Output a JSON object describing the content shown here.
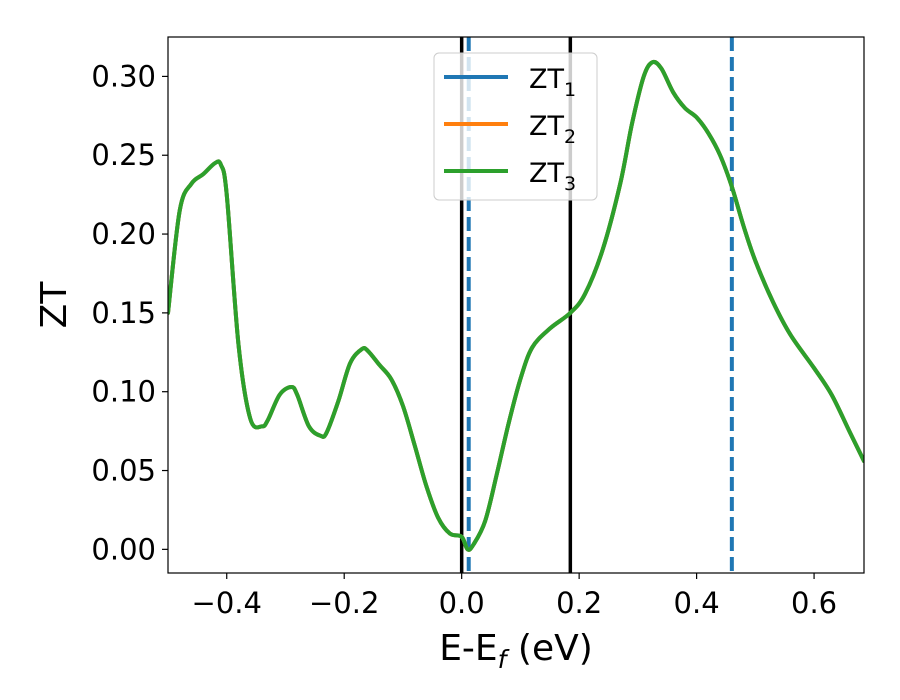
{
  "chart_data": {
    "type": "line",
    "xlabel": "E-E_f (eV)",
    "xlabel_main": "E-E",
    "xlabel_sub": "f",
    "xlabel_tail": " (eV)",
    "ylabel": "ZT",
    "xlim": [
      -0.5,
      0.685
    ],
    "ylim": [
      -0.015,
      0.325
    ],
    "x_ticks": [
      -0.4,
      -0.2,
      0.0,
      0.2,
      0.4,
      0.6
    ],
    "x_tick_labels": [
      "−0.4",
      "−0.2",
      "0.0",
      "0.2",
      "0.4",
      "0.6"
    ],
    "y_ticks": [
      0.0,
      0.05,
      0.1,
      0.15,
      0.2,
      0.25,
      0.3
    ],
    "y_tick_labels": [
      "0.00",
      "0.05",
      "0.10",
      "0.15",
      "0.20",
      "0.25",
      "0.30"
    ],
    "grid": false,
    "legend_position": "top-center",
    "vertical_lines": [
      {
        "x": 0.0,
        "style": "solid",
        "color": "#000000"
      },
      {
        "x": 0.185,
        "style": "solid",
        "color": "#000000"
      },
      {
        "x": 0.012,
        "style": "dashed",
        "color": "#1f77b4"
      },
      {
        "x": 0.46,
        "style": "dashed",
        "color": "#1f77b4"
      }
    ],
    "x": [
      -0.5,
      -0.48,
      -0.46,
      -0.44,
      -0.42,
      -0.41,
      -0.4,
      -0.38,
      -0.36,
      -0.34,
      -0.33,
      -0.31,
      -0.29,
      -0.28,
      -0.26,
      -0.24,
      -0.23,
      -0.21,
      -0.19,
      -0.17,
      -0.16,
      -0.14,
      -0.12,
      -0.1,
      -0.08,
      -0.06,
      -0.04,
      -0.02,
      0.0,
      0.01,
      0.02,
      0.04,
      0.06,
      0.08,
      0.1,
      0.12,
      0.15,
      0.185,
      0.21,
      0.24,
      0.27,
      0.29,
      0.31,
      0.325,
      0.34,
      0.36,
      0.38,
      0.4,
      0.42,
      0.44,
      0.46,
      0.48,
      0.5,
      0.53,
      0.56,
      0.6,
      0.63,
      0.66,
      0.685
    ],
    "series": [
      {
        "name": "ZT",
        "name_sub": "1",
        "color": "#1f77b4",
        "values": [
          0.15,
          0.215,
          0.232,
          0.238,
          0.245,
          0.244,
          0.225,
          0.13,
          0.083,
          0.078,
          0.082,
          0.098,
          0.103,
          0.098,
          0.078,
          0.072,
          0.074,
          0.094,
          0.118,
          0.127,
          0.126,
          0.117,
          0.108,
          0.091,
          0.066,
          0.04,
          0.02,
          0.01,
          0.008,
          0.0,
          0.003,
          0.018,
          0.048,
          0.08,
          0.108,
          0.128,
          0.14,
          0.15,
          0.162,
          0.19,
          0.232,
          0.27,
          0.3,
          0.309,
          0.305,
          0.29,
          0.28,
          0.274,
          0.264,
          0.25,
          0.23,
          0.205,
          0.183,
          0.157,
          0.136,
          0.115,
          0.098,
          0.075,
          0.056
        ]
      },
      {
        "name": "ZT",
        "name_sub": "2",
        "color": "#ff7f0e",
        "values": [
          0.15,
          0.215,
          0.232,
          0.238,
          0.245,
          0.244,
          0.225,
          0.13,
          0.083,
          0.078,
          0.082,
          0.098,
          0.103,
          0.098,
          0.078,
          0.072,
          0.074,
          0.094,
          0.118,
          0.127,
          0.126,
          0.117,
          0.108,
          0.091,
          0.066,
          0.04,
          0.02,
          0.01,
          0.008,
          0.0,
          0.003,
          0.018,
          0.048,
          0.08,
          0.108,
          0.128,
          0.14,
          0.15,
          0.162,
          0.19,
          0.232,
          0.27,
          0.3,
          0.309,
          0.305,
          0.29,
          0.28,
          0.274,
          0.264,
          0.25,
          0.23,
          0.205,
          0.183,
          0.157,
          0.136,
          0.115,
          0.098,
          0.075,
          0.056
        ]
      },
      {
        "name": "ZT",
        "name_sub": "3",
        "color": "#2ca02c",
        "values": [
          0.15,
          0.215,
          0.232,
          0.238,
          0.245,
          0.244,
          0.225,
          0.13,
          0.083,
          0.078,
          0.082,
          0.098,
          0.103,
          0.098,
          0.078,
          0.072,
          0.074,
          0.094,
          0.118,
          0.127,
          0.126,
          0.117,
          0.108,
          0.091,
          0.066,
          0.04,
          0.02,
          0.01,
          0.008,
          0.0,
          0.003,
          0.018,
          0.048,
          0.08,
          0.108,
          0.128,
          0.14,
          0.15,
          0.162,
          0.19,
          0.232,
          0.27,
          0.3,
          0.309,
          0.305,
          0.29,
          0.28,
          0.274,
          0.264,
          0.25,
          0.23,
          0.205,
          0.183,
          0.157,
          0.136,
          0.115,
          0.098,
          0.075,
          0.056
        ]
      }
    ]
  }
}
